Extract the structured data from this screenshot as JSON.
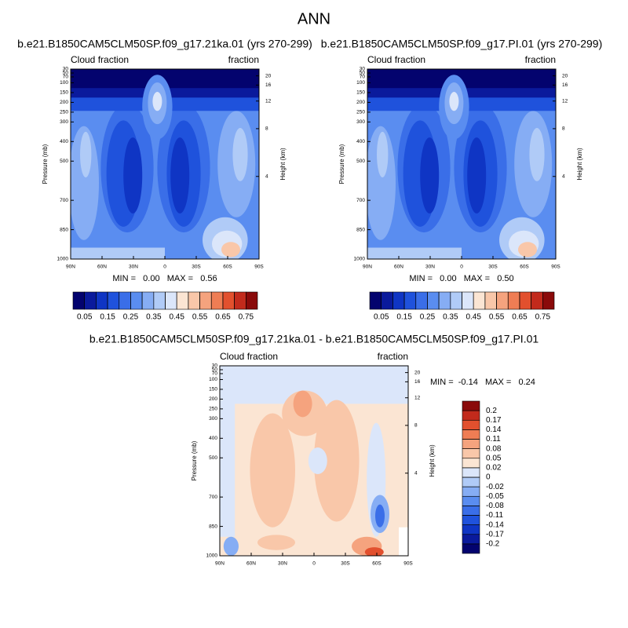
{
  "title": "ANN",
  "chart_data": [
    {
      "type": "contour",
      "subtitle": "b.e21.B1850CAM5CLM50SP.f09_g17.21ka.01 (yrs 270-299)",
      "left_label": "Cloud fraction",
      "right_label": "fraction",
      "ylabel": "Pressure (mb)",
      "y2label": "Height (km)",
      "xlim": [
        90,
        -90
      ],
      "xticks": [
        {
          "value": 90,
          "label": "90N"
        },
        {
          "value": 60,
          "label": "60N"
        },
        {
          "value": 30,
          "label": "30N"
        },
        0,
        {
          "value": -30,
          "label": "30S"
        },
        {
          "value": -60,
          "label": "60S"
        },
        {
          "value": -90,
          "label": "90S"
        }
      ],
      "ylim": [
        1000,
        30
      ],
      "yticks": [
        30,
        50,
        70,
        100,
        150,
        200,
        250,
        300,
        400,
        500,
        700,
        850,
        1000
      ],
      "y2ticks": [
        4,
        8,
        12,
        16,
        20
      ],
      "stats": "MIN =   0.00   MAX =   0.56",
      "colorbar": {
        "orientation": "horizontal",
        "levels": [
          0.05,
          0.1,
          0.15,
          0.2,
          0.25,
          0.3,
          0.35,
          0.4,
          0.45,
          0.5,
          0.55,
          0.6,
          0.65,
          0.7,
          0.75
        ],
        "ticks": [
          0.05,
          0.15,
          0.25,
          0.35,
          0.45,
          0.55,
          0.65,
          0.75
        ],
        "colors": [
          "#03036e",
          "#0a1a9c",
          "#0f35c4",
          "#1f52dc",
          "#3a6ee8",
          "#5a8df0",
          "#86adf4",
          "#b0cbf7",
          "#dbe6fa",
          "#fbe5d3",
          "#f9c7a9",
          "#f5a37e",
          "#ef7d54",
          "#e2502e",
          "#c22a1c",
          "#8a0a0a"
        ]
      }
    },
    {
      "type": "contour",
      "subtitle": "b.e21.B1850CAM5CLM50SP.f09_g17.PI.01 (yrs 270-299)",
      "left_label": "Cloud fraction",
      "right_label": "fraction",
      "ylabel": "Pressure (mb)",
      "y2label": "Height (km)",
      "xlim": [
        90,
        -90
      ],
      "xticks": [
        {
          "value": 90,
          "label": "90N"
        },
        {
          "value": 60,
          "label": "60N"
        },
        {
          "value": 30,
          "label": "30N"
        },
        0,
        {
          "value": -30,
          "label": "30S"
        },
        {
          "value": -60,
          "label": "60S"
        },
        {
          "value": -90,
          "label": "90S"
        }
      ],
      "ylim": [
        1000,
        30
      ],
      "yticks": [
        30,
        50,
        70,
        100,
        150,
        200,
        250,
        300,
        400,
        500,
        700,
        850,
        1000
      ],
      "y2ticks": [
        4,
        8,
        12,
        16,
        20
      ],
      "stats": "MIN =   0.00   MAX =   0.50",
      "colorbar": {
        "orientation": "horizontal",
        "levels": [
          0.05,
          0.1,
          0.15,
          0.2,
          0.25,
          0.3,
          0.35,
          0.4,
          0.45,
          0.5,
          0.55,
          0.6,
          0.65,
          0.7,
          0.75
        ],
        "ticks": [
          0.05,
          0.15,
          0.25,
          0.35,
          0.45,
          0.55,
          0.65,
          0.75
        ],
        "colors": [
          "#03036e",
          "#0a1a9c",
          "#0f35c4",
          "#1f52dc",
          "#3a6ee8",
          "#5a8df0",
          "#86adf4",
          "#b0cbf7",
          "#dbe6fa",
          "#fbe5d3",
          "#f9c7a9",
          "#f5a37e",
          "#ef7d54",
          "#e2502e",
          "#c22a1c",
          "#8a0a0a"
        ]
      }
    },
    {
      "type": "contour",
      "subtitle": "b.e21.B1850CAM5CLM50SP.f09_g17.21ka.01 - b.e21.B1850CAM5CLM50SP.f09_g17.PI.01",
      "left_label": "Cloud fraction",
      "right_label": "fraction",
      "ylabel": "Pressure (mb)",
      "y2label": "Height (km)",
      "xlim": [
        90,
        -90
      ],
      "xticks": [
        {
          "value": 90,
          "label": "90N"
        },
        {
          "value": 60,
          "label": "60N"
        },
        {
          "value": 30,
          "label": "30N"
        },
        0,
        {
          "value": -30,
          "label": "30S"
        },
        {
          "value": -60,
          "label": "60S"
        },
        {
          "value": -90,
          "label": "90S"
        }
      ],
      "ylim": [
        1000,
        30
      ],
      "yticks": [
        30,
        50,
        70,
        100,
        150,
        200,
        250,
        300,
        400,
        500,
        700,
        850,
        1000
      ],
      "y2ticks": [
        4,
        8,
        12,
        16,
        20
      ],
      "stats": "MIN =  -0.14   MAX =   0.24",
      "colorbar": {
        "orientation": "vertical",
        "levels": [
          -0.2,
          -0.17,
          -0.14,
          -0.11,
          -0.08,
          -0.05,
          -0.02,
          0,
          0.02,
          0.05,
          0.08,
          0.11,
          0.14,
          0.17,
          0.2
        ],
        "colors": [
          "#03036e",
          "#0a1a9c",
          "#0f35c4",
          "#1f52dc",
          "#3a6ee8",
          "#5a8df0",
          "#86adf4",
          "#b0cbf7",
          "#dbe6fa",
          "#fbe5d3",
          "#f9c7a9",
          "#f5a37e",
          "#ef7d54",
          "#e2502e",
          "#c22a1c",
          "#8a0a0a"
        ]
      }
    }
  ]
}
